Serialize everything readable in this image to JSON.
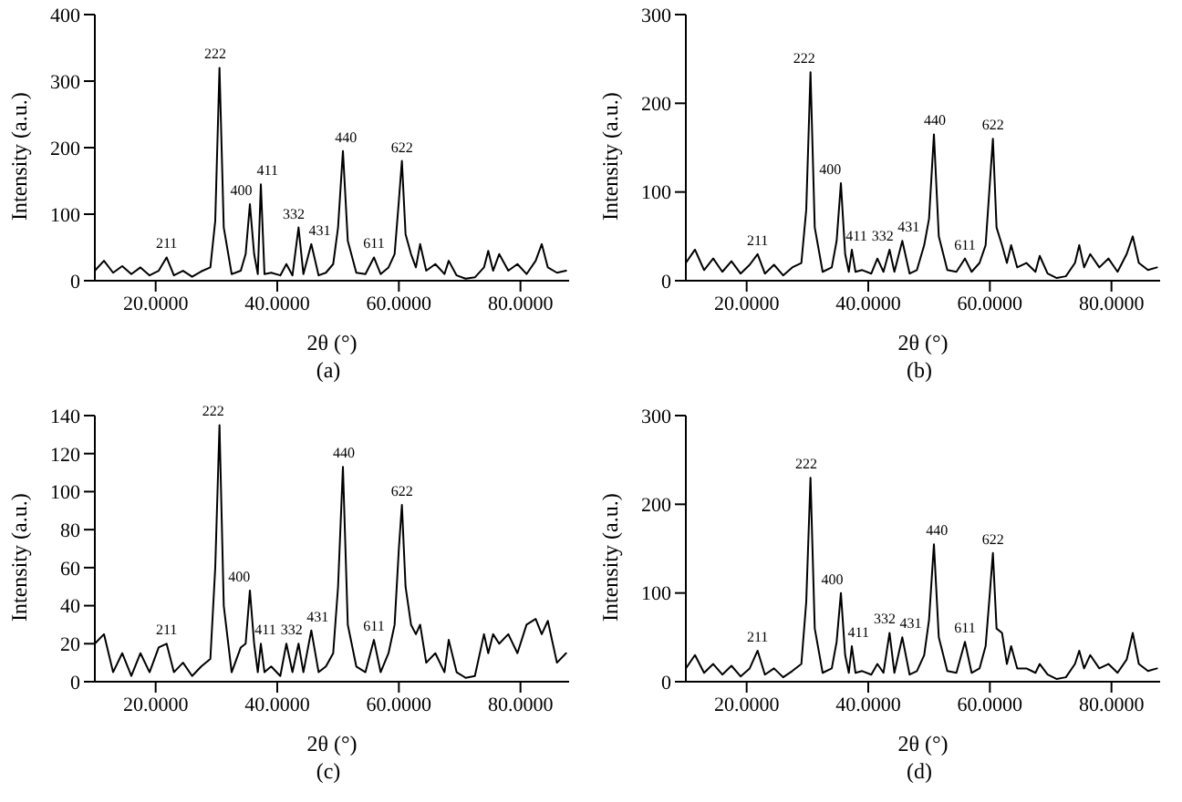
{
  "chart_data": [
    {
      "type": "line",
      "title": "(a)",
      "xlabel": "2θ (°)",
      "ylabel": "Intensity (a.u.)",
      "marker": "none",
      "x": [
        10,
        11.5,
        13,
        14.5,
        16,
        17.5,
        19,
        20.5,
        21.8,
        23,
        24.5,
        26,
        27.5,
        29,
        29.8,
        30.5,
        31.2,
        32.5,
        34,
        34.8,
        35.5,
        36.2,
        36.8,
        37.3,
        37.9,
        39,
        40.5,
        41.5,
        42.5,
        43.5,
        44.3,
        45.6,
        46.8,
        48,
        49.2,
        50,
        50.8,
        51.6,
        53,
        54.5,
        55.9,
        57,
        58.3,
        59.3,
        60,
        60.5,
        61.1,
        62,
        62.8,
        63.5,
        64.5,
        66,
        67.5,
        68.2,
        69.5,
        71,
        72.5,
        74,
        74.7,
        75.5,
        76.5,
        78,
        79.5,
        81,
        82.5,
        83.5,
        84.5,
        86,
        87.5
      ],
      "series": [
        {
          "color": "#000000",
          "values": [
            15,
            30,
            12,
            22,
            10,
            20,
            8,
            15,
            35,
            8,
            15,
            6,
            14,
            20,
            90,
            320,
            80,
            10,
            15,
            40,
            115,
            40,
            10,
            145,
            10,
            12,
            8,
            25,
            8,
            80,
            10,
            55,
            8,
            12,
            25,
            80,
            195,
            60,
            12,
            10,
            35,
            10,
            20,
            40,
            120,
            180,
            70,
            40,
            20,
            55,
            15,
            25,
            10,
            30,
            8,
            3,
            5,
            20,
            45,
            15,
            40,
            15,
            25,
            10,
            30,
            55,
            20,
            12,
            15
          ]
        }
      ],
      "xlim": [
        10,
        88
      ],
      "xticks": [
        {
          "value": 20,
          "label": "20.0000"
        },
        {
          "value": 40,
          "label": "40.0000"
        },
        {
          "value": 60,
          "label": "60.0000"
        },
        {
          "value": 80,
          "label": "80.0000"
        }
      ],
      "ylim": [
        0,
        400
      ],
      "yticks": [
        0,
        100,
        200,
        300,
        400
      ],
      "annotations": [
        {
          "text": "211",
          "x": 21.8,
          "y": 35
        },
        {
          "text": "222",
          "x": 30.5,
          "y": 320
        },
        {
          "text": "400",
          "x": 35.5,
          "y": 115
        },
        {
          "text": "411",
          "x": 37.3,
          "y": 145
        },
        {
          "text": "332",
          "x": 43.5,
          "y": 80
        },
        {
          "text": "431",
          "x": 45.6,
          "y": 55
        },
        {
          "text": "440",
          "x": 50.8,
          "y": 195
        },
        {
          "text": "611",
          "x": 55.9,
          "y": 35
        },
        {
          "text": "622",
          "x": 60.5,
          "y": 180
        }
      ]
    },
    {
      "type": "line",
      "title": "(b)",
      "xlabel": "2θ (°)",
      "ylabel": "Intensity (a.u.)",
      "marker": "none",
      "x": [
        10,
        11.5,
        13,
        14.5,
        16,
        17.5,
        19,
        20.5,
        21.8,
        23,
        24.5,
        26,
        27.5,
        29,
        29.8,
        30.5,
        31.2,
        32.5,
        34,
        34.8,
        35.5,
        36.2,
        36.8,
        37.3,
        37.9,
        39,
        40.5,
        41.5,
        42.5,
        43.5,
        44.3,
        45.6,
        46.8,
        48,
        49.2,
        50,
        50.8,
        51.6,
        53,
        54.5,
        55.9,
        57,
        58.3,
        59.3,
        60,
        60.5,
        61.1,
        62,
        62.8,
        63.5,
        64.5,
        66,
        67.5,
        68.2,
        69.5,
        71,
        72.5,
        74,
        74.7,
        75.5,
        76.5,
        78,
        79.5,
        81,
        82.5,
        83.5,
        84.5,
        86,
        87.5
      ],
      "series": [
        {
          "color": "#000000",
          "values": [
            20,
            35,
            12,
            25,
            10,
            22,
            8,
            18,
            30,
            8,
            18,
            6,
            15,
            20,
            80,
            235,
            60,
            10,
            15,
            45,
            110,
            30,
            10,
            35,
            10,
            12,
            8,
            25,
            10,
            35,
            10,
            45,
            8,
            12,
            40,
            70,
            165,
            50,
            12,
            10,
            25,
            10,
            20,
            40,
            110,
            160,
            60,
            40,
            20,
            40,
            15,
            20,
            10,
            28,
            8,
            3,
            5,
            20,
            40,
            15,
            30,
            15,
            25,
            10,
            30,
            50,
            20,
            12,
            15
          ]
        }
      ],
      "xlim": [
        10,
        88
      ],
      "xticks": [
        {
          "value": 20,
          "label": "20.0000"
        },
        {
          "value": 40,
          "label": "40.0000"
        },
        {
          "value": 60,
          "label": "60.0000"
        },
        {
          "value": 80,
          "label": "80.0000"
        }
      ],
      "ylim": [
        0,
        300
      ],
      "yticks": [
        0,
        100,
        200,
        300
      ],
      "annotations": [
        {
          "text": "211",
          "x": 21.8,
          "y": 30
        },
        {
          "text": "222",
          "x": 30.5,
          "y": 235
        },
        {
          "text": "400",
          "x": 35.5,
          "y": 110
        },
        {
          "text": "411",
          "x": 37.3,
          "y": 35
        },
        {
          "text": "332",
          "x": 41.5,
          "y": 25
        },
        {
          "text": "431",
          "x": 45.6,
          "y": 45
        },
        {
          "text": "440",
          "x": 50.8,
          "y": 165
        },
        {
          "text": "611",
          "x": 55.9,
          "y": 25
        },
        {
          "text": "622",
          "x": 60.5,
          "y": 160
        }
      ]
    },
    {
      "type": "line",
      "title": "(c)",
      "xlabel": "2θ (°)",
      "ylabel": "Intensity (a.u.)",
      "marker": "none",
      "x": [
        10,
        11.5,
        13,
        14.5,
        16,
        17.5,
        19,
        20.5,
        21.8,
        23,
        24.5,
        26,
        27.5,
        29,
        29.8,
        30.5,
        31.2,
        32.5,
        34,
        34.8,
        35.5,
        36.2,
        36.8,
        37.3,
        37.9,
        39,
        40.5,
        41.5,
        42.5,
        43.5,
        44.3,
        45.6,
        46.8,
        48,
        49.2,
        50,
        50.8,
        51.6,
        53,
        54.5,
        55.9,
        57,
        58.3,
        59.3,
        60,
        60.5,
        61.1,
        62,
        62.8,
        63.5,
        64.5,
        66,
        67.5,
        68.2,
        69.5,
        71,
        72.5,
        74,
        74.7,
        75.5,
        76.5,
        78,
        79.5,
        81,
        82.5,
        83.5,
        84.5,
        86,
        87.5
      ],
      "series": [
        {
          "color": "#000000",
          "values": [
            20,
            25,
            5,
            15,
            3,
            15,
            5,
            18,
            20,
            5,
            10,
            3,
            8,
            12,
            60,
            135,
            40,
            5,
            18,
            20,
            48,
            20,
            5,
            20,
            5,
            8,
            3,
            20,
            5,
            20,
            5,
            27,
            5,
            8,
            15,
            50,
            113,
            30,
            8,
            5,
            22,
            5,
            15,
            30,
            70,
            93,
            50,
            30,
            25,
            30,
            10,
            15,
            5,
            22,
            5,
            2,
            3,
            25,
            15,
            25,
            20,
            25,
            15,
            30,
            33,
            25,
            32,
            10,
            15
          ]
        }
      ],
      "xlim": [
        10,
        88
      ],
      "xticks": [
        {
          "value": 20,
          "label": "20.0000"
        },
        {
          "value": 40,
          "label": "40.0000"
        },
        {
          "value": 60,
          "label": "60.0000"
        },
        {
          "value": 80,
          "label": "80.0000"
        }
      ],
      "ylim": [
        0,
        140
      ],
      "yticks": [
        0,
        20,
        40,
        60,
        80,
        100,
        120,
        140
      ],
      "annotations": [
        {
          "text": "211",
          "x": 21.8,
          "y": 20
        },
        {
          "text": "222",
          "x": 30.5,
          "y": 135
        },
        {
          "text": "400",
          "x": 35.5,
          "y": 48
        },
        {
          "text": "411",
          "x": 37.3,
          "y": 20
        },
        {
          "text": "332",
          "x": 41.5,
          "y": 20
        },
        {
          "text": "431",
          "x": 45.6,
          "y": 27
        },
        {
          "text": "440",
          "x": 50.8,
          "y": 113
        },
        {
          "text": "611",
          "x": 55.9,
          "y": 22
        },
        {
          "text": "622",
          "x": 60.5,
          "y": 93
        }
      ]
    },
    {
      "type": "line",
      "title": "(d)",
      "xlabel": "2θ (°)",
      "ylabel": "Intensity (a.u.)",
      "marker": "none",
      "x": [
        10,
        11.5,
        13,
        14.5,
        16,
        17.5,
        19,
        20.5,
        21.8,
        23,
        24.5,
        26,
        27.5,
        29,
        29.8,
        30.5,
        31.2,
        32.5,
        34,
        34.8,
        35.5,
        36.2,
        36.8,
        37.3,
        37.9,
        39,
        40.5,
        41.5,
        42.5,
        43.5,
        44.3,
        45.6,
        46.8,
        48,
        49.2,
        50,
        50.8,
        51.6,
        53,
        54.5,
        55.9,
        57,
        58.3,
        59.3,
        60,
        60.5,
        61.1,
        62,
        62.8,
        63.5,
        64.5,
        66,
        67.5,
        68.2,
        69.5,
        71,
        72.5,
        74,
        74.7,
        75.5,
        76.5,
        78,
        79.5,
        81,
        82.5,
        83.5,
        84.5,
        86,
        87.5
      ],
      "series": [
        {
          "color": "#000000",
          "values": [
            15,
            30,
            10,
            20,
            8,
            18,
            6,
            15,
            35,
            8,
            15,
            5,
            12,
            20,
            90,
            230,
            60,
            10,
            15,
            45,
            100,
            30,
            10,
            40,
            10,
            12,
            8,
            20,
            10,
            55,
            10,
            50,
            8,
            12,
            30,
            70,
            155,
            50,
            12,
            10,
            45,
            10,
            15,
            40,
            100,
            145,
            60,
            55,
            20,
            40,
            15,
            15,
            10,
            20,
            8,
            3,
            5,
            20,
            35,
            15,
            30,
            15,
            20,
            10,
            25,
            55,
            20,
            12,
            15
          ]
        }
      ],
      "xlim": [
        10,
        88
      ],
      "xticks": [
        {
          "value": 20,
          "label": "20.0000"
        },
        {
          "value": 40,
          "label": "40.0000"
        },
        {
          "value": 60,
          "label": "60.0000"
        },
        {
          "value": 80,
          "label": "80.0000"
        }
      ],
      "ylim": [
        0,
        300
      ],
      "yticks": [
        0,
        100,
        200,
        300
      ],
      "annotations": [
        {
          "text": "211",
          "x": 21.8,
          "y": 35
        },
        {
          "text": "222",
          "x": 30.5,
          "y": 230
        },
        {
          "text": "400",
          "x": 35.5,
          "y": 100
        },
        {
          "text": "411",
          "x": 37.3,
          "y": 40
        },
        {
          "text": "332",
          "x": 43.5,
          "y": 55
        },
        {
          "text": "431",
          "x": 45.6,
          "y": 50
        },
        {
          "text": "440",
          "x": 50.8,
          "y": 155
        },
        {
          "text": "611",
          "x": 55.9,
          "y": 45
        },
        {
          "text": "622",
          "x": 60.5,
          "y": 145
        }
      ]
    }
  ]
}
